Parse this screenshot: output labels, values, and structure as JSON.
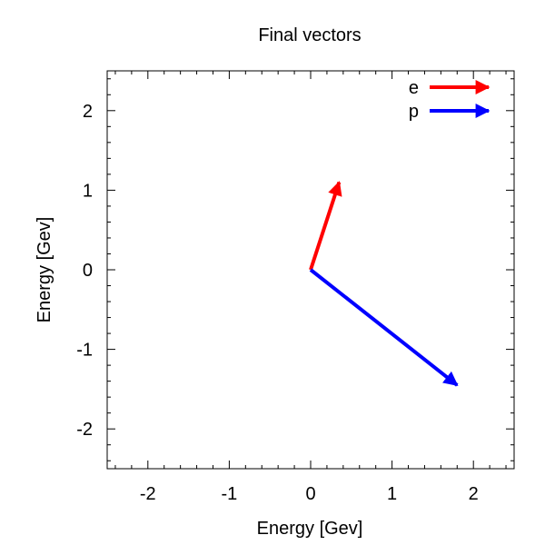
{
  "chart_data": {
    "type": "vector",
    "title": "Final vectors",
    "xlabel": "Energy [Gev]",
    "ylabel": "Energy [Gev]",
    "xlim": [
      -2.5,
      2.5
    ],
    "ylim": [
      -2.5,
      2.5
    ],
    "xticks": [
      -2,
      -1,
      0,
      1,
      2
    ],
    "yticks": [
      -2,
      -1,
      0,
      1,
      2
    ],
    "grid": false,
    "legend_position": "top-right",
    "series": [
      {
        "name": "e",
        "color": "#ff0000",
        "x0": 0,
        "y0": 0,
        "x1": 0.35,
        "y1": 1.1
      },
      {
        "name": "p",
        "color": "#0000ff",
        "x0": 0,
        "y0": 0,
        "x1": 1.8,
        "y1": -1.45
      }
    ]
  }
}
